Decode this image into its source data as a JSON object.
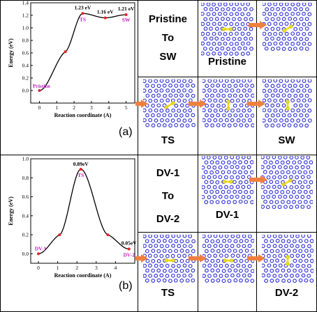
{
  "panels": [
    {
      "label": "(a)",
      "sequence_title_lines": [
        "Pristine",
        "To",
        "SW"
      ],
      "state_labels": [
        "Pristine",
        "TS",
        "SW"
      ]
    },
    {
      "label": "(b)",
      "sequence_title_lines": [
        "DV-1",
        "To",
        "DV-2"
      ],
      "state_labels": [
        "DV-1",
        "TS",
        "DV-2"
      ]
    }
  ],
  "colors": {
    "curve": "#000000",
    "point": "#e8202a",
    "state_label": "#c020c0",
    "arrow": "#f08040",
    "atom": "#3a3ad8",
    "defect_bond": "#f0e020"
  },
  "chart_data": [
    {
      "type": "line",
      "xlabel": "Reaction coordinate (A)",
      "ylabel": "Energy (eV)",
      "xlim": [
        -0.5,
        5.5
      ],
      "ylim": [
        -0.2,
        1.4
      ],
      "xticks": [
        0,
        1,
        2,
        3,
        4,
        5
      ],
      "yticks": [
        0.0,
        0.2,
        0.4,
        0.6,
        0.8,
        1.0,
        1.2,
        1.4
      ],
      "points": [
        {
          "x": 0.0,
          "y": 0.0,
          "label": "Pristine"
        },
        {
          "x": 1.5,
          "y": 0.62
        },
        {
          "x": 2.5,
          "y": 1.23,
          "label": "TS",
          "value_label": "1.23 eV"
        },
        {
          "x": 3.8,
          "y": 1.16,
          "value_label": "1.16 eV"
        },
        {
          "x": 5.0,
          "y": 1.21,
          "label": "SW",
          "value_label": "1.21 eV"
        }
      ]
    },
    {
      "type": "line",
      "xlabel": "Reaction coordinate (A)",
      "ylabel": "Energy (eV)",
      "xlim": [
        -0.4,
        5.0
      ],
      "ylim": [
        -0.1,
        1.0
      ],
      "xticks": [
        0,
        1,
        2,
        3,
        4
      ],
      "yticks": [
        0.0,
        0.2,
        0.4,
        0.6,
        0.8,
        1.0
      ],
      "points": [
        {
          "x": 0.0,
          "y": 0.0,
          "label": "DV-1"
        },
        {
          "x": 1.1,
          "y": 0.2
        },
        {
          "x": 2.2,
          "y": 0.89,
          "label": "TS",
          "value_label": "0.89eV"
        },
        {
          "x": 3.6,
          "y": 0.2
        },
        {
          "x": 4.7,
          "y": 0.05,
          "label": "DV-2",
          "value_label": "0.05eV"
        }
      ]
    }
  ]
}
